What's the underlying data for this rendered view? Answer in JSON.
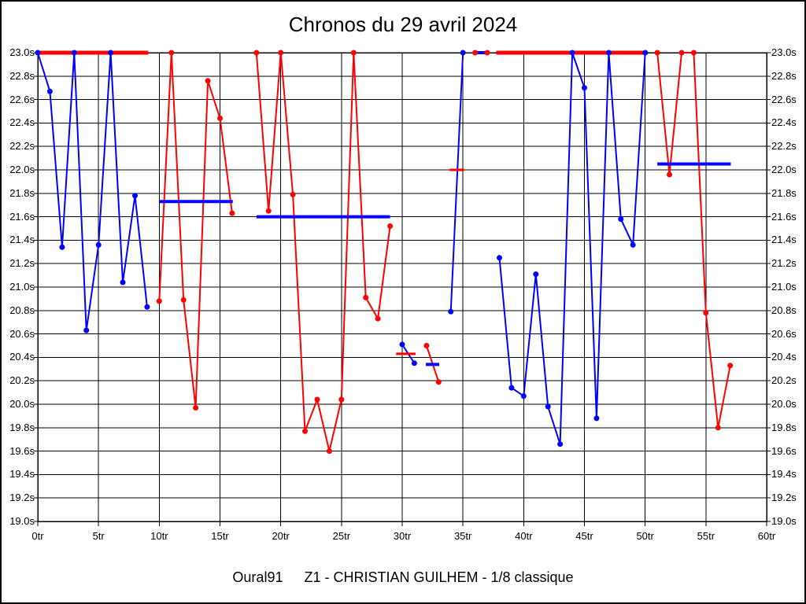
{
  "footer": {
    "club": "Oural91",
    "driver": "Z1 - CHRISTIAN GUILHEM - 1/8 classique"
  },
  "colors": {
    "blue": "#0000ff",
    "red": "#ff0000",
    "grid": "#000000",
    "background": "#ffffff"
  },
  "chart_data": {
    "type": "line",
    "title": "Chronos du 29 avril 2024",
    "xlabel": "",
    "ylabel": "",
    "x_unit": "tr",
    "y_unit": "s",
    "xlim": [
      0,
      60
    ],
    "ylim": [
      19.0,
      23.0
    ],
    "y_tick_step": 0.2,
    "x_tick_step": 5,
    "grid": true,
    "legend": "none",
    "x_tick_labels": [
      "0tr",
      "5tr",
      "10tr",
      "15tr",
      "20tr",
      "25tr",
      "30tr",
      "35tr",
      "40tr",
      "45tr",
      "50tr",
      "55tr",
      "60tr"
    ],
    "y_tick_labels": [
      "23.0s",
      "22.8s",
      "22.6s",
      "22.4s",
      "22.2s",
      "22.0s",
      "21.8s",
      "21.6s",
      "21.4s",
      "21.2s",
      "21.0s",
      "20.8s",
      "20.6s",
      "20.4s",
      "20.2s",
      "20.0s",
      "19.8s",
      "19.6s",
      "19.4s",
      "19.2s",
      "19.0s"
    ],
    "series": [
      {
        "name": "laps-blue",
        "color": "#0000ff",
        "runs": [
          [
            [
              0,
              23.0
            ],
            [
              1,
              22.67
            ],
            [
              2,
              21.34
            ],
            [
              3,
              23.0
            ],
            [
              4,
              20.63
            ],
            [
              5,
              21.36
            ],
            [
              6,
              23.0
            ],
            [
              7,
              21.04
            ],
            [
              8,
              21.78
            ],
            [
              9,
              20.83
            ]
          ],
          [
            [
              30,
              20.51
            ],
            [
              31,
              20.35
            ]
          ],
          [
            [
              34,
              20.79
            ],
            [
              35,
              23.0
            ]
          ],
          [
            [
              38,
              21.25
            ],
            [
              39,
              20.14
            ],
            [
              40,
              20.07
            ],
            [
              41,
              21.11
            ],
            [
              42,
              19.98
            ],
            [
              43,
              19.66
            ],
            [
              44,
              23.0
            ],
            [
              45,
              22.7
            ],
            [
              46,
              19.88
            ],
            [
              47,
              23.0
            ],
            [
              48,
              21.58
            ],
            [
              49,
              21.36
            ],
            [
              50,
              23.0
            ]
          ]
        ]
      },
      {
        "name": "laps-red",
        "color": "#ff0000",
        "runs": [
          [
            [
              10,
              20.88
            ],
            [
              11,
              23.0
            ],
            [
              12,
              20.89
            ],
            [
              13,
              19.97
            ],
            [
              14,
              22.76
            ],
            [
              15,
              22.44
            ],
            [
              16,
              21.63
            ]
          ],
          [
            [
              18,
              23.0
            ],
            [
              19,
              21.65
            ],
            [
              20,
              23.0
            ],
            [
              21,
              21.79
            ],
            [
              22,
              19.77
            ],
            [
              23,
              20.04
            ],
            [
              24,
              19.6
            ],
            [
              25,
              20.04
            ],
            [
              26,
              23.0
            ],
            [
              27,
              20.91
            ],
            [
              28,
              20.73
            ],
            [
              29,
              21.52
            ]
          ],
          [
            [
              32,
              20.5
            ],
            [
              33,
              20.19
            ]
          ],
          [
            [
              36,
              23.0
            ],
            [
              37,
              23.0
            ]
          ],
          [
            [
              51,
              23.0
            ],
            [
              52,
              21.96
            ],
            [
              53,
              23.0
            ],
            [
              54,
              23.0
            ],
            [
              55,
              20.78
            ],
            [
              56,
              19.8
            ],
            [
              57,
              20.33
            ]
          ]
        ]
      }
    ],
    "average_segments": [
      {
        "series": "red",
        "x1": 0,
        "x2": 9.1,
        "y": 23.0,
        "thickness": 5
      },
      {
        "series": "blue",
        "x1": 10,
        "x2": 16.05,
        "y": 21.73,
        "thickness": 4
      },
      {
        "series": "blue",
        "x1": 18,
        "x2": 29,
        "y": 21.6,
        "thickness": 4
      },
      {
        "series": "red",
        "x1": 29.5,
        "x2": 31.1,
        "y": 20.43,
        "thickness": 3
      },
      {
        "series": "blue",
        "x1": 31.95,
        "x2": 33.05,
        "y": 20.34,
        "thickness": 4
      },
      {
        "series": "red",
        "x1": 33.9,
        "x2": 35.1,
        "y": 22.0,
        "thickness": 3
      },
      {
        "series": "blue",
        "x1": 36,
        "x2": 37.1,
        "y": 23.0,
        "thickness": 4
      },
      {
        "series": "red",
        "x1": 37.75,
        "x2": 50.2,
        "y": 23.0,
        "thickness": 5
      },
      {
        "series": "blue",
        "x1": 51,
        "x2": 57.05,
        "y": 22.05,
        "thickness": 4
      }
    ]
  }
}
